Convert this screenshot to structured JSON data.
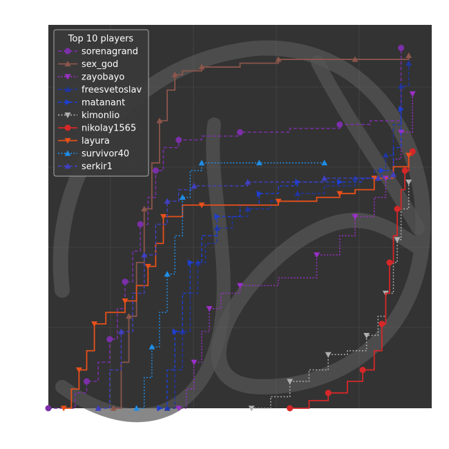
{
  "chart_data": {
    "type": "line",
    "title": "",
    "xlabel": "",
    "ylabel": "",
    "xlim": [
      0,
      100
    ],
    "ylim": [
      0,
      100
    ],
    "grid": true,
    "legend_title": "Top 10 players",
    "legend_placement": "top-left",
    "background": "#333333",
    "series": [
      {
        "name": "sorenagrand",
        "color": "#7b2fa8",
        "marker": "circle",
        "linestyle": "dashed",
        "x": [
          0,
          7,
          10,
          13,
          16,
          18,
          20,
          22,
          24,
          26,
          28,
          30,
          34,
          40,
          50,
          63,
          76,
          84,
          92
        ],
        "y": [
          0,
          4,
          7,
          12,
          18,
          26,
          33,
          41,
          48,
          55,
          62,
          68,
          70,
          71,
          72,
          73,
          74,
          75,
          94
        ]
      },
      {
        "name": "sex_god",
        "color": "#8c564b",
        "marker": "triangle-up",
        "linestyle": "solid",
        "x": [
          17,
          19,
          21,
          23,
          25,
          27,
          29,
          31,
          33,
          35,
          40,
          50,
          60,
          70,
          80,
          90,
          94
        ],
        "y": [
          0,
          12,
          24,
          38,
          52,
          64,
          75,
          83,
          87,
          88,
          89,
          90,
          91,
          91,
          91,
          91,
          92
        ]
      },
      {
        "name": "zayobayo",
        "color": "#9b30c8",
        "marker": "triangle-down",
        "linestyle": "dotted",
        "x": [
          34,
          36,
          38,
          40,
          42,
          45,
          50,
          60,
          70,
          76,
          80,
          85,
          88,
          90,
          92,
          95
        ],
        "y": [
          0,
          5,
          12,
          20,
          26,
          30,
          32,
          34,
          40,
          45,
          50,
          55,
          60,
          65,
          72,
          82
        ]
      },
      {
        "name": "freesvetoslav",
        "color": "#2036a0",
        "marker": "triangle-up",
        "linestyle": "dashed",
        "x": [
          31,
          33,
          35,
          37,
          39,
          41,
          44,
          48,
          52,
          58,
          65,
          72,
          80,
          85,
          88,
          90,
          92,
          94
        ],
        "y": [
          0,
          10,
          20,
          30,
          38,
          43,
          47,
          50,
          52,
          54,
          56,
          58,
          60,
          62,
          66,
          74,
          84,
          90
        ]
      },
      {
        "name": "matanant",
        "color": "#1e3fd0",
        "marker": "triangle-right",
        "linestyle": "dashed",
        "x": [
          29,
          31,
          33,
          35,
          37,
          40,
          44,
          50,
          55,
          60,
          65,
          70,
          76,
          82,
          87,
          90,
          92
        ],
        "y": [
          0,
          10,
          20,
          30,
          38,
          45,
          50,
          53,
          56,
          58,
          59,
          59,
          59,
          60,
          62,
          68,
          78
        ]
      },
      {
        "name": "kimonlio",
        "color": "#b0b0b0",
        "marker": "triangle-down",
        "linestyle": "dotted",
        "x": [
          53,
          58,
          63,
          68,
          73,
          78,
          83,
          86,
          88,
          90,
          91,
          92,
          94
        ],
        "y": [
          0,
          3,
          7,
          10,
          14,
          15,
          19,
          24,
          30,
          38,
          44,
          52,
          59
        ]
      },
      {
        "name": "nikolay1565",
        "color": "#d62728",
        "marker": "circle",
        "linestyle": "solid",
        "x": [
          63,
          68,
          73,
          78,
          82,
          85,
          87,
          88,
          89,
          90,
          91,
          92,
          93,
          94,
          95
        ],
        "y": [
          0,
          2,
          4,
          7,
          10,
          15,
          22,
          30,
          38,
          45,
          52,
          57,
          62,
          66,
          67
        ]
      },
      {
        "name": "layura",
        "color": "#e8501a",
        "marker": "triangle-down",
        "linestyle": "solid",
        "x": [
          4,
          6,
          8,
          10,
          12,
          15,
          20,
          23,
          26,
          28,
          30,
          35,
          40,
          50,
          60,
          70,
          76,
          80,
          85,
          90,
          94
        ],
        "y": [
          0,
          5,
          10,
          15,
          22,
          25,
          28,
          32,
          37,
          43,
          50,
          53,
          53,
          53,
          54,
          55,
          56,
          57,
          60,
          63,
          66
        ]
      },
      {
        "name": "survivor40",
        "color": "#1f8ee8",
        "marker": "triangle-up",
        "linestyle": "dotted",
        "x": [
          23,
          25,
          27,
          29,
          31,
          33,
          35,
          37,
          40,
          45,
          55,
          65,
          72
        ],
        "y": [
          0,
          8,
          16,
          25,
          35,
          45,
          55,
          62,
          64,
          64,
          64,
          64,
          64
        ]
      },
      {
        "name": "serkir1",
        "color": "#4040c0",
        "marker": "triangle-up",
        "linestyle": "dashed",
        "x": [
          13,
          16,
          19,
          22,
          25,
          28,
          31,
          34,
          38,
          44,
          52,
          62,
          72,
          80,
          86,
          90
        ],
        "y": [
          0,
          10,
          20,
          30,
          40,
          48,
          54,
          57,
          58,
          58,
          59,
          59,
          60,
          60,
          60,
          61
        ]
      }
    ]
  }
}
